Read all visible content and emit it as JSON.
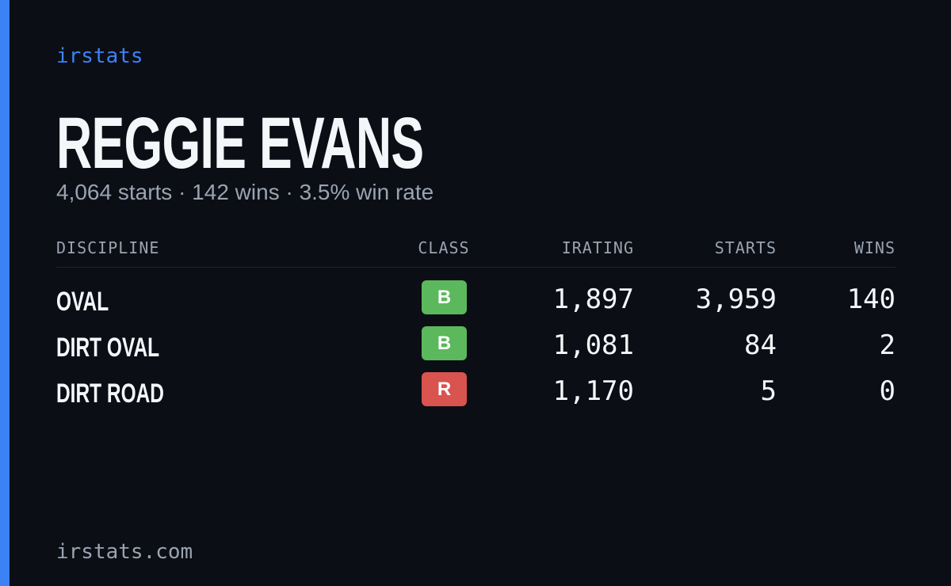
{
  "brand": "irstats",
  "driver": {
    "name": "REGGIE EVANS",
    "summary": "4,064 starts · 142 wins · 3.5% win rate"
  },
  "table": {
    "headers": [
      "DISCIPLINE",
      "CLASS",
      "IRATING",
      "STARTS",
      "WINS"
    ],
    "rows": [
      [
        "OVAL",
        "B",
        "1,897",
        "3,959",
        "140"
      ],
      [
        "DIRT OVAL",
        "B",
        "1,081",
        "84",
        "2"
      ],
      [
        "DIRT ROAD",
        "R",
        "1,170",
        "5",
        "0"
      ]
    ],
    "class_colors": {
      "B": "#5cb85c",
      "R": "#d9534f"
    }
  },
  "footer": "irstats.com"
}
